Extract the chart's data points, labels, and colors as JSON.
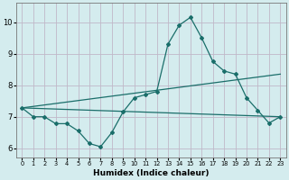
{
  "xlabel": "Humidex (Indice chaleur)",
  "background_color": "#d4ecee",
  "grid_color": "#c0b8c8",
  "line_color": "#1a6e6a",
  "xlim": [
    -0.5,
    23.5
  ],
  "ylim": [
    5.7,
    10.6
  ],
  "yticks": [
    6,
    7,
    8,
    9,
    10
  ],
  "line1_x": [
    0,
    1,
    2,
    3,
    4,
    5,
    6,
    7,
    8,
    9,
    10,
    11,
    12,
    13,
    14,
    15,
    16,
    17,
    18,
    19,
    20,
    21,
    22,
    23
  ],
  "line1_y": [
    7.28,
    7.0,
    7.0,
    6.78,
    6.78,
    6.55,
    6.15,
    6.05,
    6.5,
    7.15,
    7.6,
    7.7,
    7.8,
    9.3,
    9.9,
    10.15,
    9.5,
    8.75,
    8.45,
    8.35,
    7.6,
    7.2,
    6.8,
    7.0
  ],
  "line2_y_start": 7.28,
  "line2_y_end": 8.35,
  "line3_y_start": 7.28,
  "line3_y_end": 7.0
}
